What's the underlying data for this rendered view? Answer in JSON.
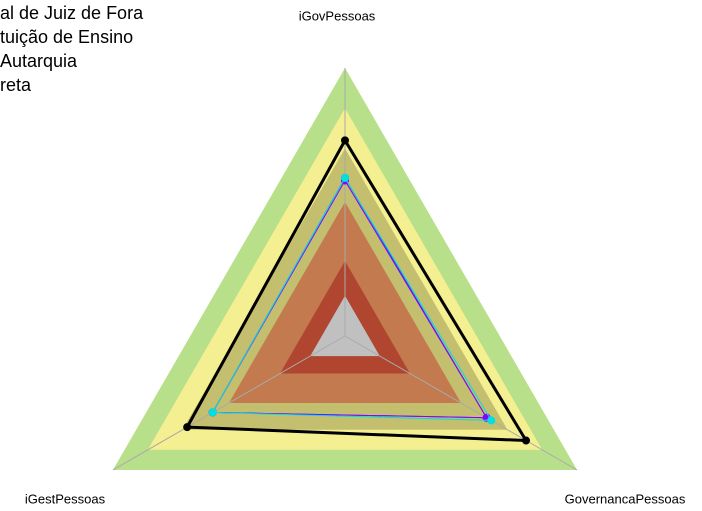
{
  "chart_data": {
    "type": "radar",
    "axes": [
      "iGovPessoas",
      "GovernancaPessoas",
      "iGestPessoas"
    ],
    "rlim": [
      0,
      1
    ],
    "levels": [
      {
        "value": 1,
        "color": "#b8e08a"
      },
      {
        "value": 0.85,
        "color": "#f4ef90"
      },
      {
        "value": 0.7,
        "color": "#c4bf6e"
      },
      {
        "value": 0.5,
        "color": "#c27a4e"
      },
      {
        "value": 0.28,
        "color": "#b04530"
      },
      {
        "value": 0.15,
        "color": "#c0c0c0"
      }
    ],
    "series": [
      {
        "name": "al de Juiz de Fora",
        "color": "#000000",
        "values": [
          0.73,
          0.78,
          0.68
        ]
      },
      {
        "name": "tuição de Ensino",
        "color": "#3344dd",
        "values": [
          0.59,
          0.61,
          0.57
        ]
      },
      {
        "name": "Autarquia",
        "color": "#8a00ff",
        "values": [
          0.58,
          0.61,
          0.57
        ]
      },
      {
        "name": "reta",
        "color": "#00e0e0",
        "values": [
          0.59,
          0.63,
          0.57
        ]
      }
    ]
  }
}
